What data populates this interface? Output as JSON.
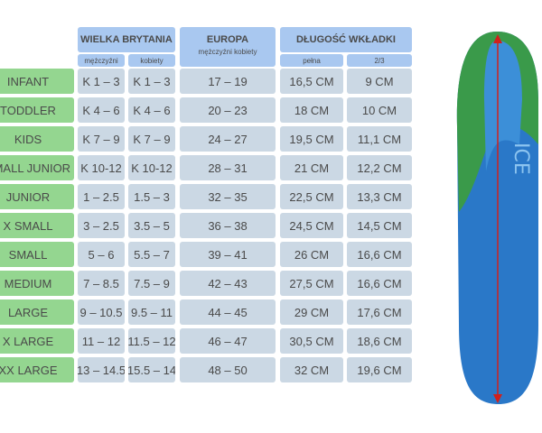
{
  "header": {
    "groups": [
      "WIELKA BRYTANIA",
      "EUROPA",
      "DŁUGOŚĆ WKŁADKI"
    ],
    "europa_sub": "mężczyźni kobiety",
    "subheaders": [
      "mężczyźni",
      "kobiety",
      "pełna",
      "2/3"
    ]
  },
  "table": {
    "rows": [
      [
        "INFANT",
        "K 1 – 3",
        "K 1 – 3",
        "17 – 19",
        "16,5 CM",
        "9 CM"
      ],
      [
        "TODDLER",
        "K 4 – 6",
        "K 4 – 6",
        "20 – 23",
        "18 CM",
        "10 CM"
      ],
      [
        "KIDS",
        "K 7 – 9",
        "K 7 – 9",
        "24 – 27",
        "19,5 CM",
        "11,1 CM"
      ],
      [
        "SMALL JUNIOR",
        "K 10-12",
        "K 10-12",
        "28 – 31",
        "21 CM",
        "12,2 CM"
      ],
      [
        "JUNIOR",
        "1 – 2.5",
        "1.5 – 3",
        "32 – 35",
        "22,5 CM",
        "13,3 CM"
      ],
      [
        "X SMALL",
        "3 – 2.5",
        "3.5 – 5",
        "36 – 38",
        "24,5 CM",
        "14,5 CM"
      ],
      [
        "SMALL",
        "5 – 6",
        "5.5 – 7",
        "39 – 41",
        "26 CM",
        "16,6 CM"
      ],
      [
        "MEDIUM",
        "7 – 8.5",
        "7.5 – 9",
        "42 – 43",
        "27,5 CM",
        "16,6 CM"
      ],
      [
        "LARGE",
        "9 – 10.5",
        "9.5 – 11",
        "44 – 45",
        "29 CM",
        "17,6 CM"
      ],
      [
        "X LARGE",
        "11 – 12",
        "11.5 – 12",
        "46 – 47",
        "30,5 CM",
        "18,6 CM"
      ],
      [
        "XX LARGE",
        "13 – 14.5",
        "15.5 – 14",
        "48 – 50",
        "32 CM",
        "19,6 CM"
      ]
    ]
  },
  "insole": {
    "logo": "ICE"
  }
}
